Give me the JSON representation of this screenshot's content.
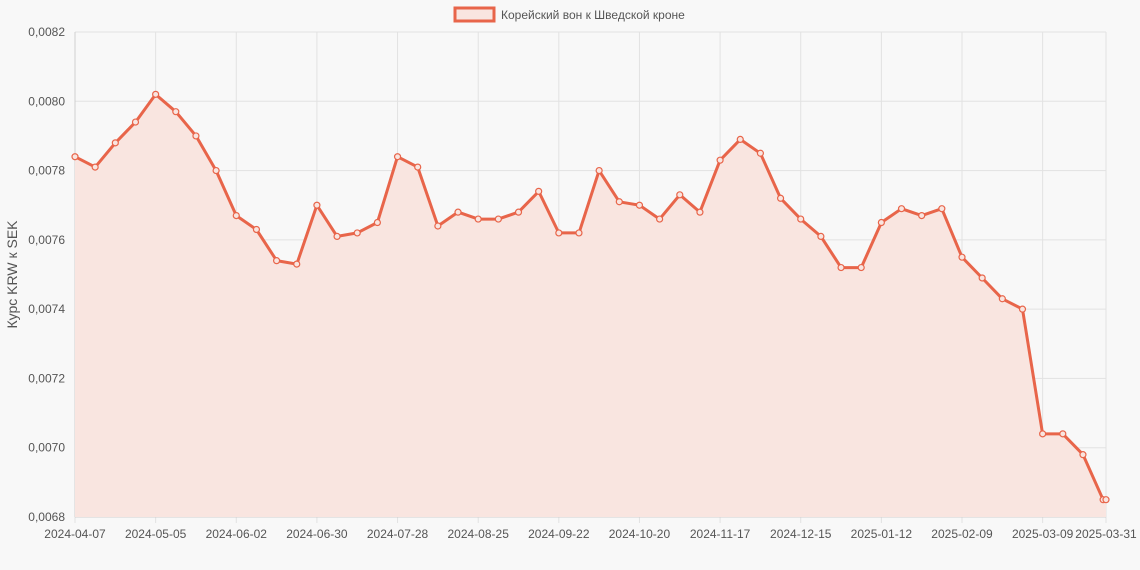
{
  "chart_data": {
    "type": "area",
    "series": [
      {
        "name": "Корейский вон к Шведской кроне",
        "color": "#e8654a",
        "fill": "#f9e5e0",
        "x": [
          "2024-04-07",
          "2024-04-14",
          "2024-04-21",
          "2024-04-28",
          "2024-05-05",
          "2024-05-12",
          "2024-05-19",
          "2024-05-26",
          "2024-06-02",
          "2024-06-09",
          "2024-06-16",
          "2024-06-23",
          "2024-06-30",
          "2024-07-07",
          "2024-07-14",
          "2024-07-21",
          "2024-07-28",
          "2024-08-04",
          "2024-08-11",
          "2024-08-18",
          "2024-08-25",
          "2024-09-01",
          "2024-09-08",
          "2024-09-15",
          "2024-09-22",
          "2024-09-29",
          "2024-10-06",
          "2024-10-13",
          "2024-10-20",
          "2024-10-27",
          "2024-11-03",
          "2024-11-10",
          "2024-11-17",
          "2024-11-24",
          "2024-12-01",
          "2024-12-08",
          "2024-12-15",
          "2024-12-22",
          "2024-12-29",
          "2025-01-05",
          "2025-01-12",
          "2025-01-19",
          "2025-01-26",
          "2025-02-02",
          "2025-02-09",
          "2025-02-16",
          "2025-02-23",
          "2025-03-02",
          "2025-03-09",
          "2025-03-16",
          "2025-03-23",
          "2025-03-30",
          "2025-03-31"
        ],
        "values": [
          0.00784,
          0.00781,
          0.00788,
          0.00794,
          0.00802,
          0.00797,
          0.0079,
          0.0078,
          0.00767,
          0.00763,
          0.00754,
          0.00753,
          0.0077,
          0.00761,
          0.00762,
          0.00765,
          0.00784,
          0.00781,
          0.00764,
          0.00768,
          0.00766,
          0.00766,
          0.00768,
          0.00774,
          0.00762,
          0.00762,
          0.0078,
          0.00771,
          0.0077,
          0.00766,
          0.00773,
          0.00768,
          0.00783,
          0.00789,
          0.00785,
          0.00772,
          0.00766,
          0.00761,
          0.00752,
          0.00752,
          0.00765,
          0.00769,
          0.00767,
          0.00769,
          0.00755,
          0.00749,
          0.00743,
          0.0074,
          0.00704,
          0.00704,
          0.00698,
          0.00685,
          0.00685
        ]
      }
    ],
    "x_ticks": [
      "2024-04-07",
      "2024-05-05",
      "2024-06-02",
      "2024-06-30",
      "2024-07-28",
      "2024-08-25",
      "2024-09-22",
      "2024-10-20",
      "2024-11-17",
      "2024-12-15",
      "2025-01-12",
      "2025-02-09",
      "2025-03-09",
      "2025-03-31"
    ],
    "y_ticks": [
      "0,0068",
      "0,0070",
      "0,0072",
      "0,0074",
      "0,0076",
      "0,0078",
      "0,0080",
      "0,0082"
    ],
    "ylim": [
      0.0068,
      0.0082
    ],
    "ylabel": "Курс KRW к SEK",
    "xlabel": "",
    "legend_position": "top-center",
    "grid": true
  }
}
